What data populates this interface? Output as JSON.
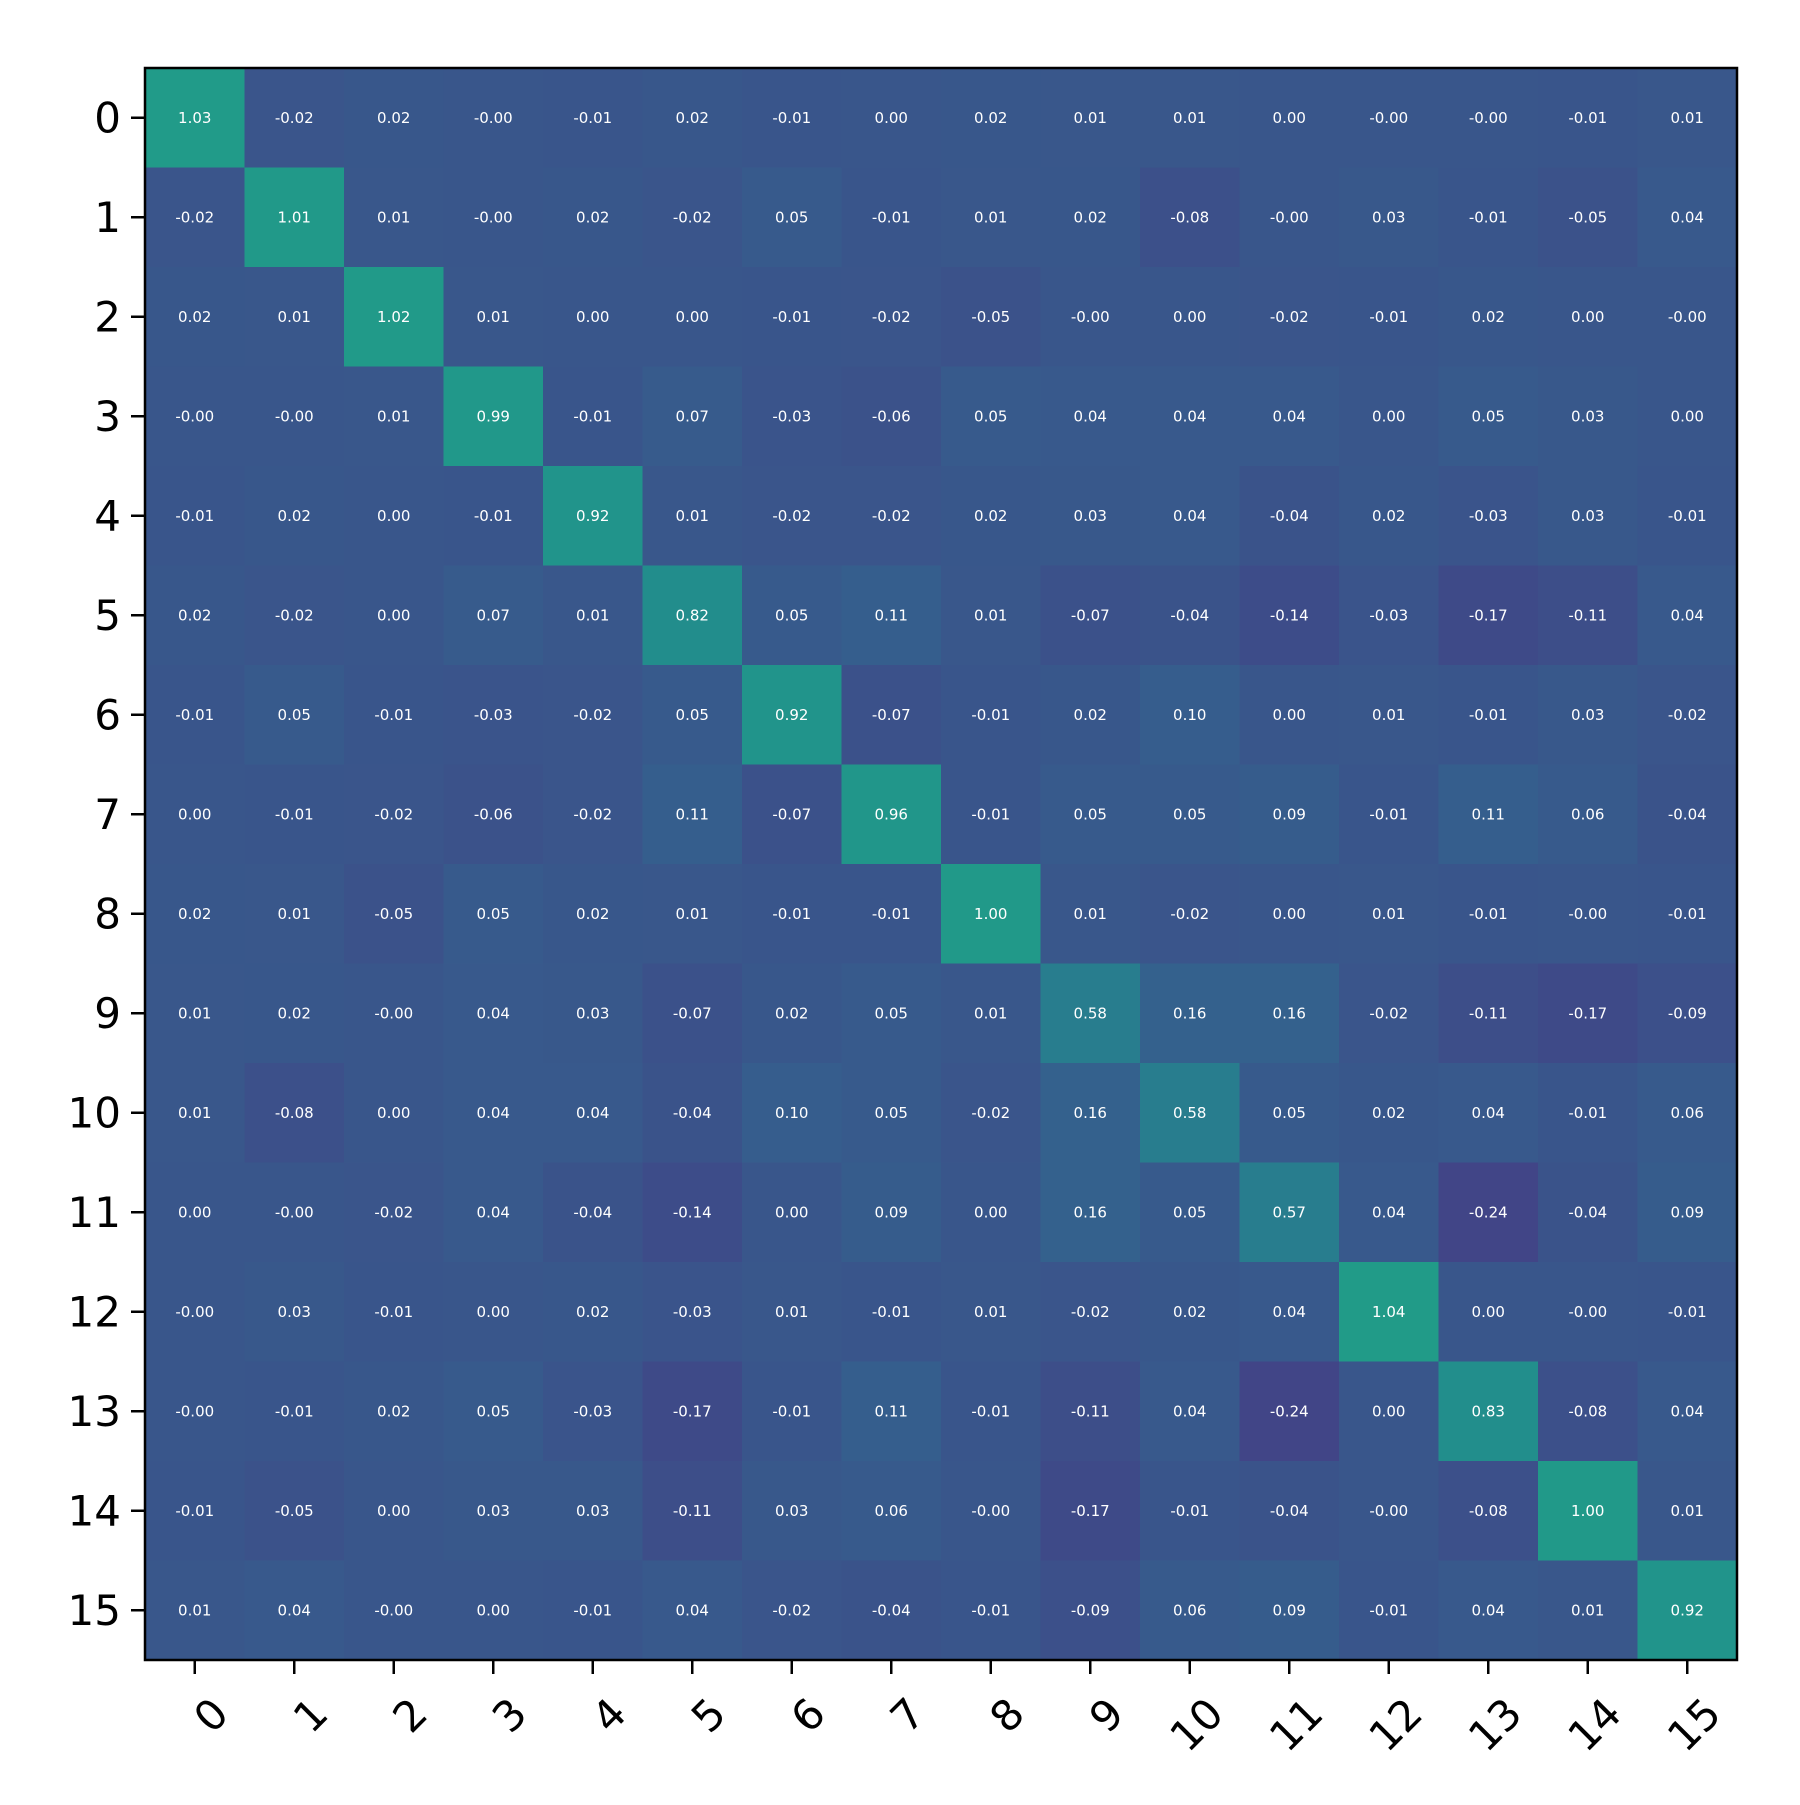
{
  "chart_data": {
    "type": "heatmap",
    "title": "",
    "xlabel": "",
    "ylabel": "",
    "colormap": "viridis",
    "color_range": [
      -1.0,
      2.0
    ],
    "x_ticks": [
      "0",
      "1",
      "2",
      "3",
      "4",
      "5",
      "6",
      "7",
      "8",
      "9",
      "10",
      "11",
      "12",
      "13",
      "14",
      "15"
    ],
    "y_ticks": [
      "0",
      "1",
      "2",
      "3",
      "4",
      "5",
      "6",
      "7",
      "8",
      "9",
      "10",
      "11",
      "12",
      "13",
      "14",
      "15"
    ],
    "values": [
      [
        "1.03",
        "-0.02",
        "0.02",
        "-0.00",
        "-0.01",
        "0.02",
        "-0.01",
        "0.00",
        "0.02",
        "0.01",
        "0.01",
        "0.00",
        "-0.00",
        "-0.00",
        "-0.01",
        "0.01"
      ],
      [
        "-0.02",
        "1.01",
        "0.01",
        "-0.00",
        "0.02",
        "-0.02",
        "0.05",
        "-0.01",
        "0.01",
        "0.02",
        "-0.08",
        "-0.00",
        "0.03",
        "-0.01",
        "-0.05",
        "0.04"
      ],
      [
        "0.02",
        "0.01",
        "1.02",
        "0.01",
        "0.00",
        "0.00",
        "-0.01",
        "-0.02",
        "-0.05",
        "-0.00",
        "0.00",
        "-0.02",
        "-0.01",
        "0.02",
        "0.00",
        "-0.00"
      ],
      [
        "-0.00",
        "-0.00",
        "0.01",
        "0.99",
        "-0.01",
        "0.07",
        "-0.03",
        "-0.06",
        "0.05",
        "0.04",
        "0.04",
        "0.04",
        "0.00",
        "0.05",
        "0.03",
        "0.00"
      ],
      [
        "-0.01",
        "0.02",
        "0.00",
        "-0.01",
        "0.92",
        "0.01",
        "-0.02",
        "-0.02",
        "0.02",
        "0.03",
        "0.04",
        "-0.04",
        "0.02",
        "-0.03",
        "0.03",
        "-0.01"
      ],
      [
        "0.02",
        "-0.02",
        "0.00",
        "0.07",
        "0.01",
        "0.82",
        "0.05",
        "0.11",
        "0.01",
        "-0.07",
        "-0.04",
        "-0.14",
        "-0.03",
        "-0.17",
        "-0.11",
        "0.04"
      ],
      [
        "-0.01",
        "0.05",
        "-0.01",
        "-0.03",
        "-0.02",
        "0.05",
        "0.92",
        "-0.07",
        "-0.01",
        "0.02",
        "0.10",
        "0.00",
        "0.01",
        "-0.01",
        "0.03",
        "-0.02"
      ],
      [
        "0.00",
        "-0.01",
        "-0.02",
        "-0.06",
        "-0.02",
        "0.11",
        "-0.07",
        "0.96",
        "-0.01",
        "0.05",
        "0.05",
        "0.09",
        "-0.01",
        "0.11",
        "0.06",
        "-0.04"
      ],
      [
        "0.02",
        "0.01",
        "-0.05",
        "0.05",
        "0.02",
        "0.01",
        "-0.01",
        "-0.01",
        "1.00",
        "0.01",
        "-0.02",
        "0.00",
        "0.01",
        "-0.01",
        "-0.00",
        "-0.01"
      ],
      [
        "0.01",
        "0.02",
        "-0.00",
        "0.04",
        "0.03",
        "-0.07",
        "0.02",
        "0.05",
        "0.01",
        "0.58",
        "0.16",
        "0.16",
        "-0.02",
        "-0.11",
        "-0.17",
        "-0.09"
      ],
      [
        "0.01",
        "-0.08",
        "0.00",
        "0.04",
        "0.04",
        "-0.04",
        "0.10",
        "0.05",
        "-0.02",
        "0.16",
        "0.58",
        "0.05",
        "0.02",
        "0.04",
        "-0.01",
        "0.06"
      ],
      [
        "0.00",
        "-0.00",
        "-0.02",
        "0.04",
        "-0.04",
        "-0.14",
        "0.00",
        "0.09",
        "0.00",
        "0.16",
        "0.05",
        "0.57",
        "0.04",
        "-0.24",
        "-0.04",
        "0.09"
      ],
      [
        "-0.00",
        "0.03",
        "-0.01",
        "0.00",
        "0.02",
        "-0.03",
        "0.01",
        "-0.01",
        "0.01",
        "-0.02",
        "0.02",
        "0.04",
        "1.04",
        "0.00",
        "-0.00",
        "-0.01"
      ],
      [
        "-0.00",
        "-0.01",
        "0.02",
        "0.05",
        "-0.03",
        "-0.17",
        "-0.01",
        "0.11",
        "-0.01",
        "-0.11",
        "0.04",
        "-0.24",
        "0.00",
        "0.83",
        "-0.08",
        "0.04"
      ],
      [
        "-0.01",
        "-0.05",
        "0.00",
        "0.03",
        "0.03",
        "-0.11",
        "0.03",
        "0.06",
        "-0.00",
        "-0.17",
        "-0.01",
        "-0.04",
        "-0.00",
        "-0.08",
        "1.00",
        "0.01"
      ],
      [
        "0.01",
        "0.04",
        "-0.00",
        "0.00",
        "-0.01",
        "0.04",
        "-0.02",
        "-0.04",
        "-0.01",
        "-0.09",
        "0.06",
        "0.09",
        "-0.01",
        "0.04",
        "0.01",
        "0.92"
      ]
    ]
  }
}
